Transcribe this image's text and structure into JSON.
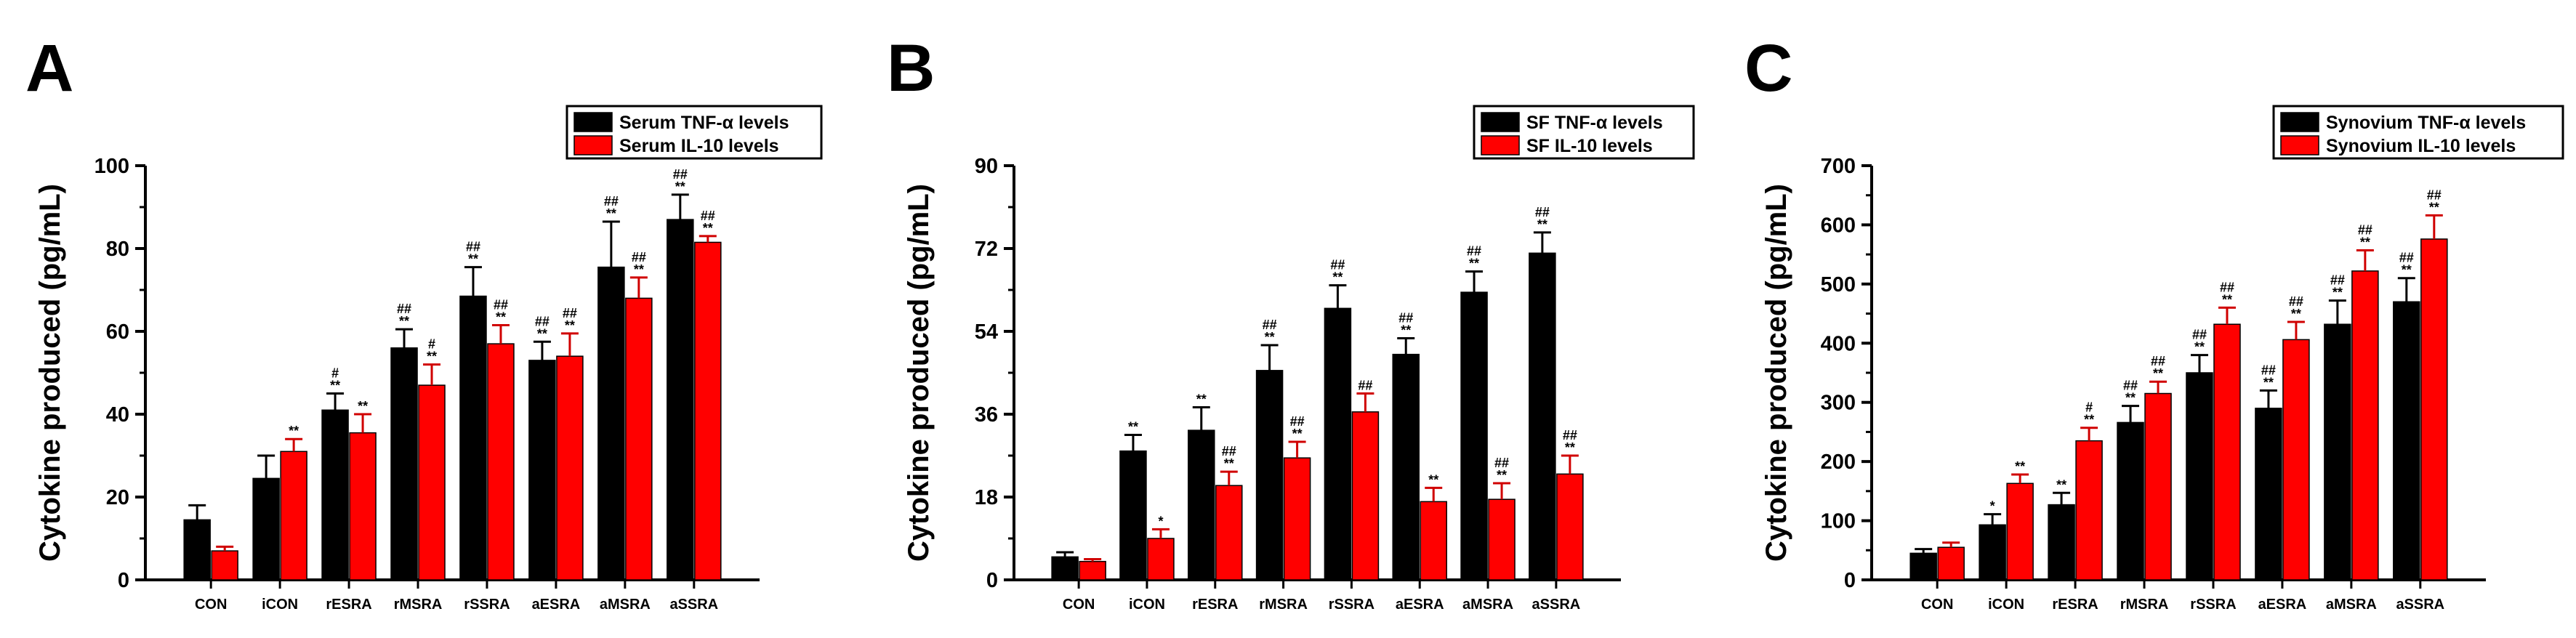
{
  "chart_data": [
    {
      "type": "bar",
      "panel_label": "A",
      "categories": [
        "CON",
        "iCON",
        "rESRA",
        "rMSRA",
        "rSSRA",
        "aESRA",
        "aMSRA",
        "aSSRA"
      ],
      "series": [
        {
          "name": "Serum TNF-α levels",
          "values": [
            14.5,
            24.5,
            41,
            56,
            68.5,
            53,
            75.5,
            87
          ],
          "errors": [
            3.5,
            5.5,
            4,
            4.5,
            7,
            4.5,
            11,
            6
          ]
        },
        {
          "name": "Serum IL-10 levels",
          "values": [
            7,
            31,
            35.5,
            47,
            57,
            54,
            68,
            81.5
          ],
          "errors": [
            1,
            3,
            4.5,
            5,
            4.5,
            5.5,
            5,
            1.5
          ]
        }
      ],
      "annotations": [
        [
          "",
          "",
          "#\n**",
          "##\n**",
          "##\n**",
          "##\n**",
          "##\n**",
          "##\n**"
        ],
        [
          "",
          "**",
          "**",
          "#\n**",
          "##\n**",
          "##\n**",
          "##\n**",
          "##\n**"
        ]
      ],
      "ylabel": "Cytokine produced (pg/mL)",
      "ylim": [
        0,
        100
      ],
      "yticks": [
        0,
        20,
        40,
        60,
        80,
        100
      ],
      "colors": [
        "#000000",
        "#ff0000"
      ],
      "legend_position": "top-right"
    },
    {
      "type": "bar",
      "panel_label": "B",
      "categories": [
        "CON",
        "iCON",
        "rESRA",
        "rMSRA",
        "rSSRA",
        "aESRA",
        "aMSRA",
        "aSSRA"
      ],
      "series": [
        {
          "name": "SF TNF-α levels",
          "values": [
            5,
            28,
            32.5,
            45.5,
            59,
            49,
            62.5,
            71
          ],
          "errors": [
            1,
            3.5,
            5,
            5.5,
            5,
            3.5,
            4.5,
            4.5
          ]
        },
        {
          "name": "SF IL-10 levels",
          "values": [
            4,
            9,
            20.5,
            26.5,
            36.5,
            17,
            17.5,
            23
          ],
          "errors": [
            0.5,
            2,
            3,
            3.5,
            4,
            3,
            3.5,
            4
          ]
        }
      ],
      "annotations": [
        [
          "",
          "**",
          "**",
          "##\n**",
          "##\n**",
          "##\n**",
          "##\n**",
          "##\n**"
        ],
        [
          "",
          "*",
          "##\n**",
          "##\n**",
          "##",
          "**",
          "##\n**",
          "##\n**"
        ]
      ],
      "ylabel": "Cytokine produced (pg/mL)",
      "ylim": [
        0,
        90
      ],
      "yticks": [
        0,
        18,
        36,
        54,
        72,
        90
      ],
      "colors": [
        "#000000",
        "#ff0000"
      ],
      "legend_position": "top-right"
    },
    {
      "type": "bar",
      "panel_label": "C",
      "categories": [
        "CON",
        "iCON",
        "rESRA",
        "rMSRA",
        "rSSRA",
        "aESRA",
        "aMSRA",
        "aSSRA"
      ],
      "series": [
        {
          "name": "Synovium TNF-α levels",
          "values": [
            45,
            93,
            127,
            266,
            350,
            290,
            432,
            470
          ],
          "errors": [
            7,
            18,
            20,
            28,
            30,
            30,
            40,
            40
          ]
        },
        {
          "name": "Synovium IL-10 levels",
          "values": [
            55,
            163,
            235,
            315,
            432,
            406,
            522,
            576
          ],
          "errors": [
            8,
            15,
            22,
            20,
            28,
            30,
            35,
            40
          ]
        }
      ],
      "annotations": [
        [
          "",
          "*",
          "**",
          "##\n**",
          "##\n**",
          "##\n**",
          "##\n**",
          "##\n**"
        ],
        [
          "",
          "**",
          "#\n**",
          "##\n**",
          "##\n**",
          "##\n**",
          "##\n**",
          "##\n**"
        ]
      ],
      "ylabel": "Cytokine produced (pg/mL)",
      "ylim": [
        0,
        700
      ],
      "yticks": [
        0,
        100,
        200,
        300,
        400,
        500,
        600,
        700
      ],
      "colors": [
        "#000000",
        "#ff0000"
      ],
      "legend_position": "top-right"
    }
  ]
}
